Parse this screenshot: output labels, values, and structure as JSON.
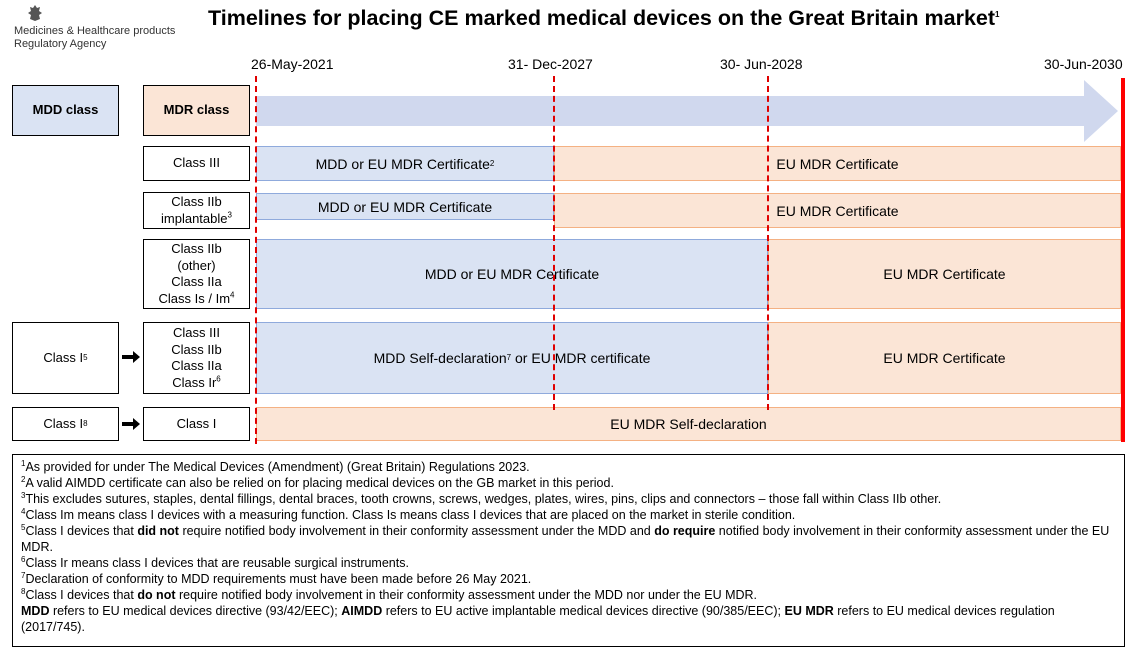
{
  "header": {
    "org_line1": "Medicines & Healthcare products",
    "org_line2": "Regulatory Agency",
    "title": "Timelines for placing CE marked medical devices on the Great Britain market",
    "title_sup": "1"
  },
  "dates": {
    "d1": "26-May-2021",
    "d2": "31- Dec-2027",
    "d3": "30- Jun-2028",
    "d4": "30-Jun-2030"
  },
  "columns": {
    "mdd_class": "MDD class",
    "mdr_class": "MDR class"
  },
  "rows": {
    "r1": {
      "mdr": "Class III",
      "bar1": "MDD or EU MDR Certificate",
      "bar1_sup": "2",
      "bar2": "EU MDR Certificate"
    },
    "r2": {
      "mdr_line1": "Class IIb",
      "mdr_line2": "implantable",
      "mdr_sup": "3",
      "bar1": "MDD or EU MDR Certificate",
      "bar2": "EU MDR Certificate"
    },
    "r3": {
      "mdr_line1": "Class IIb",
      "mdr_line2": "(other)",
      "mdr_line3": "Class IIa",
      "mdr_line4": "Class Is / Im",
      "mdr_sup": "4",
      "bar1": "MDD or EU MDR Certificate",
      "bar2": "EU MDR Certificate"
    },
    "r4": {
      "mdd": "Class I",
      "mdd_sup": "5",
      "mdr_line1": "Class III",
      "mdr_line2": "Class IIb",
      "mdr_line3": "Class IIa",
      "mdr_line4": "Class Ir",
      "mdr_sup": "6",
      "bar1_a": "MDD Self-declaration",
      "bar1_sup": "7",
      "bar1_b": " or EU MDR certificate",
      "bar2": "EU MDR Certificate"
    },
    "r5": {
      "mdd": "Class I",
      "mdd_sup": "8",
      "mdr": "Class I",
      "bar1": "EU MDR Self-declaration"
    }
  },
  "notes": {
    "n1_sup": "1",
    "n1": "As provided for under The Medical Devices (Amendment) (Great Britain) Regulations 2023.",
    "n2_sup": "2",
    "n2": "A valid AIMDD certificate can also be relied on for placing medical devices on the GB market in this period.",
    "n3_sup": "3",
    "n3": "This excludes sutures, staples, dental fillings, dental braces, tooth crowns, screws, wedges, plates, wires, pins, clips and connectors – those fall within Class IIb other.",
    "n4_sup": "4",
    "n4": "Class Im means class I devices with a measuring function. Class Is means class I devices that are placed on the market in sterile condition.",
    "n5_sup": "5",
    "n5_a": "Class I devices that ",
    "n5_b": "did not",
    "n5_c": " require notified body involvement in their conformity assessment under the MDD and ",
    "n5_d": "do require",
    "n5_e": " notified body involvement in their conformity assessment under the EU MDR.",
    "n6_sup": "6",
    "n6": "Class Ir means class I devices that are reusable surgical instruments.",
    "n7_sup": "7",
    "n7": "Declaration of conformity to MDD requirements must have been made before 26 May 2021.",
    "n8_sup": "8",
    "n8_a": "Class I devices that ",
    "n8_b": "do not",
    "n8_c": " require notified body involvement in their conformity assessment under the MDD nor under the EU MDR.",
    "g1_b": "MDD",
    "g1": " refers to EU medical devices directive (93/42/EEC); ",
    "g2_b": "AIMDD",
    "g2": " refers to EU active implantable medical devices directive (90/385/EEC); ",
    "g3_b": "EU MDR",
    "g3": " refers to EU medical devices regulation (2017/745)."
  }
}
